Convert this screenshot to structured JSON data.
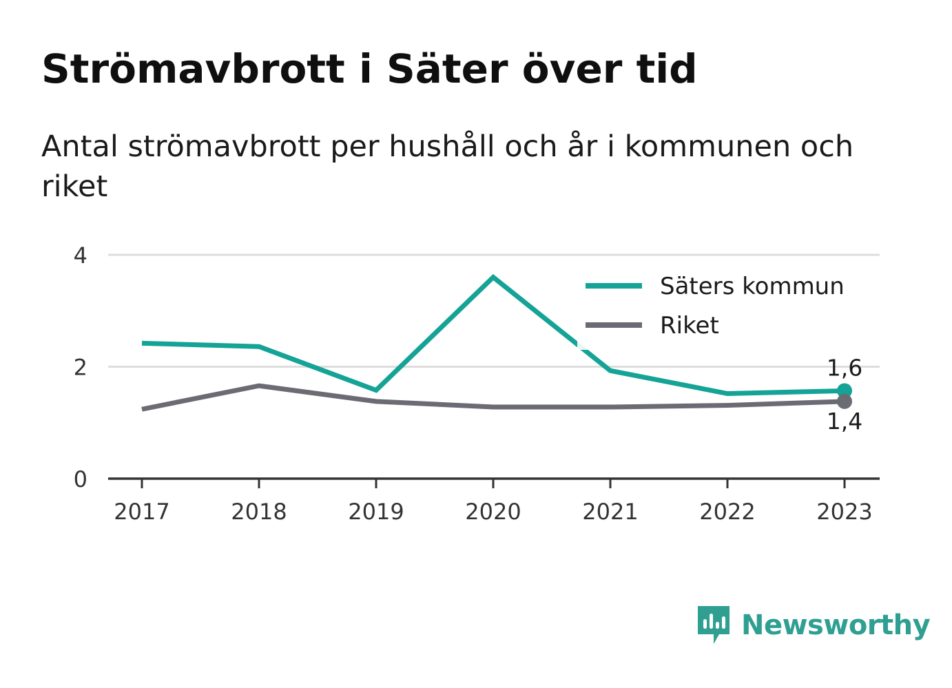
{
  "header": {
    "title": "Strömavbrott i Säter över tid",
    "subtitle": "Antal strömavbrott per hushåll och år i kommunen och riket"
  },
  "colors": {
    "series_kommun": "#14a396",
    "series_riket": "#6b6b73",
    "gridline": "#dddddd",
    "axis": "#333333",
    "brand": "#2f9f92"
  },
  "chart_data": {
    "type": "line",
    "x": [
      "2017",
      "2018",
      "2019",
      "2020",
      "2021",
      "2022",
      "2023"
    ],
    "series": [
      {
        "name": "Säters kommun",
        "color": "#14a396",
        "values": [
          2.42,
          2.36,
          1.58,
          3.6,
          1.93,
          1.52,
          1.57
        ]
      },
      {
        "name": "Riket",
        "color": "#6b6b73",
        "values": [
          1.24,
          1.66,
          1.38,
          1.28,
          1.28,
          1.31,
          1.38
        ]
      }
    ],
    "yticks": [
      "0",
      "2",
      "4"
    ],
    "ylim": [
      0,
      4
    ],
    "grid": true,
    "legend": "top-right",
    "end_labels": [
      "1,6",
      "1,4"
    ]
  },
  "brand": {
    "name": "Newsworthy",
    "icon": "newsworthy-logo-icon"
  }
}
